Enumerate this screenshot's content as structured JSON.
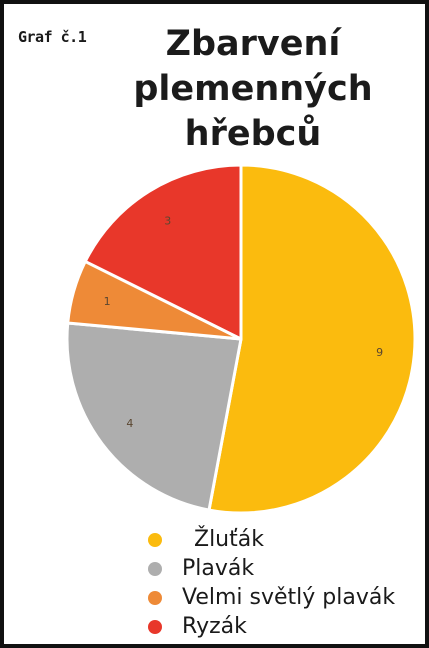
{
  "figure_label": "Graf č.1",
  "chart_data": {
    "type": "pie",
    "title_lines": [
      "Zbarvení",
      "plemenných",
      "hřebců"
    ],
    "categories": [
      "Žluťák",
      "Plavák",
      "Velmi světlý plavák",
      "Ryzák"
    ],
    "values": [
      9,
      4,
      1,
      3
    ],
    "value_labels": [
      "9",
      "4",
      "1",
      "3"
    ],
    "colors": [
      "#FBBB0E",
      "#AEAEAE",
      "#EE8A37",
      "#E8372A"
    ],
    "start_angle_deg": 0,
    "direction": "clockwise",
    "legend_position": "bottom"
  }
}
